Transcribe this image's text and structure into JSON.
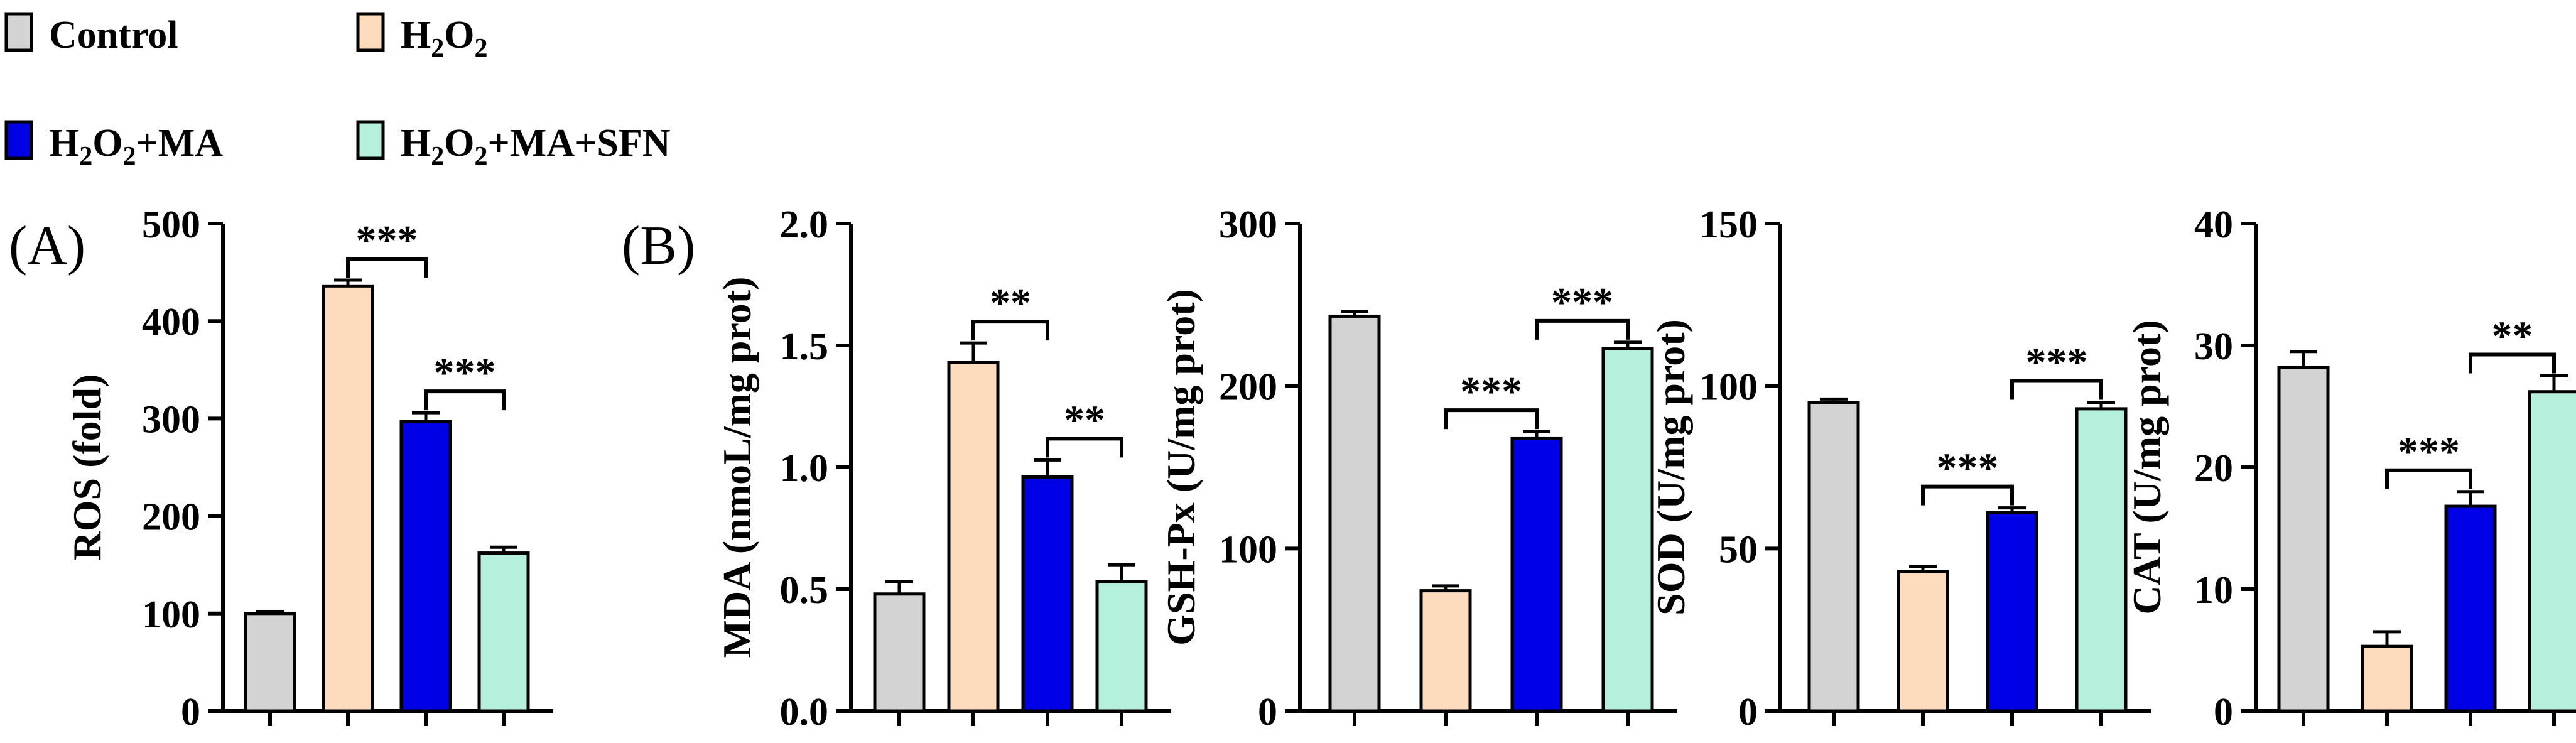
{
  "legend": [
    {
      "label": "Control",
      "sub": "",
      "suffix": "",
      "color": "#d3d3d3"
    },
    {
      "label": "H",
      "sub": "2",
      "suffix": "O",
      "sub2": "2",
      "tail": "",
      "color": "#fcdcbc"
    },
    {
      "label": "H",
      "sub": "2",
      "suffix": "O",
      "sub2": "2",
      "tail": "+MA",
      "color": "#0000e6"
    },
    {
      "label": "H",
      "sub": "2",
      "suffix": "O",
      "sub2": "2",
      "tail": "+MA+SFN",
      "color": "#b4f0dc"
    }
  ],
  "panel_labels": [
    "(A)",
    "(B)"
  ],
  "chart_data": [
    {
      "type": "bar",
      "title": "",
      "ylabel": "ROS (fold)",
      "ylim": [
        0,
        500
      ],
      "yticks": [
        0,
        100,
        200,
        300,
        400,
        500
      ],
      "categories": [
        "Control",
        "H2O2",
        "H2O2+MA",
        "H2O2+MA+SFN"
      ],
      "values": [
        100,
        436,
        297,
        162
      ],
      "errors": [
        2,
        6,
        9,
        6
      ],
      "significance": [
        {
          "from": 1,
          "to": 2,
          "label": "***"
        },
        {
          "from": 2,
          "to": 3,
          "label": "***"
        }
      ]
    },
    {
      "type": "bar",
      "title": "",
      "ylabel": "MDA (nmoL/mg prot)",
      "ylim": [
        0,
        2.0
      ],
      "yticks": [
        "0.0",
        "0.5",
        "1.0",
        "1.5",
        "2.0"
      ],
      "categories": [
        "Control",
        "H2O2",
        "H2O2+MA",
        "H2O2+MA+SFN"
      ],
      "values": [
        0.48,
        1.43,
        0.96,
        0.53
      ],
      "errors": [
        0.05,
        0.08,
        0.07,
        0.07
      ],
      "significance": [
        {
          "from": 1,
          "to": 2,
          "label": "**"
        },
        {
          "from": 2,
          "to": 3,
          "label": "**"
        }
      ]
    },
    {
      "type": "bar",
      "title": "",
      "ylabel": "GSH-Px (U/mg prot)",
      "ylim": [
        0,
        300
      ],
      "yticks": [
        0,
        100,
        200,
        300
      ],
      "categories": [
        "Control",
        "H2O2",
        "H2O2+MA",
        "H2O2+MA+SFN"
      ],
      "values": [
        243,
        74,
        168,
        223
      ],
      "errors": [
        3,
        3,
        4,
        4
      ],
      "significance": [
        {
          "from": 1,
          "to": 2,
          "label": "***"
        },
        {
          "from": 2,
          "to": 3,
          "label": "***"
        }
      ]
    },
    {
      "type": "bar",
      "title": "",
      "ylabel": "SOD (U/mg prot)",
      "ylim": [
        0,
        150
      ],
      "yticks": [
        0,
        50,
        100,
        150
      ],
      "categories": [
        "Control",
        "H2O2",
        "H2O2+MA",
        "H2O2+MA+SFN"
      ],
      "values": [
        95,
        43,
        61,
        93
      ],
      "errors": [
        1,
        1.5,
        1.5,
        2
      ],
      "significance": [
        {
          "from": 1,
          "to": 2,
          "label": "***"
        },
        {
          "from": 2,
          "to": 3,
          "label": "***"
        }
      ]
    },
    {
      "type": "bar",
      "title": "",
      "ylabel": "CAT (U/mg prot)",
      "ylim": [
        0,
        40
      ],
      "yticks": [
        0,
        10,
        20,
        30,
        40
      ],
      "categories": [
        "Control",
        "H2O2",
        "H2O2+MA",
        "H2O2+MA+SFN"
      ],
      "values": [
        28.2,
        5.3,
        16.8,
        26.2
      ],
      "errors": [
        1.3,
        1.2,
        1.2,
        1.3
      ],
      "significance": [
        {
          "from": 1,
          "to": 2,
          "label": "***"
        },
        {
          "from": 2,
          "to": 3,
          "label": "**"
        }
      ]
    }
  ]
}
